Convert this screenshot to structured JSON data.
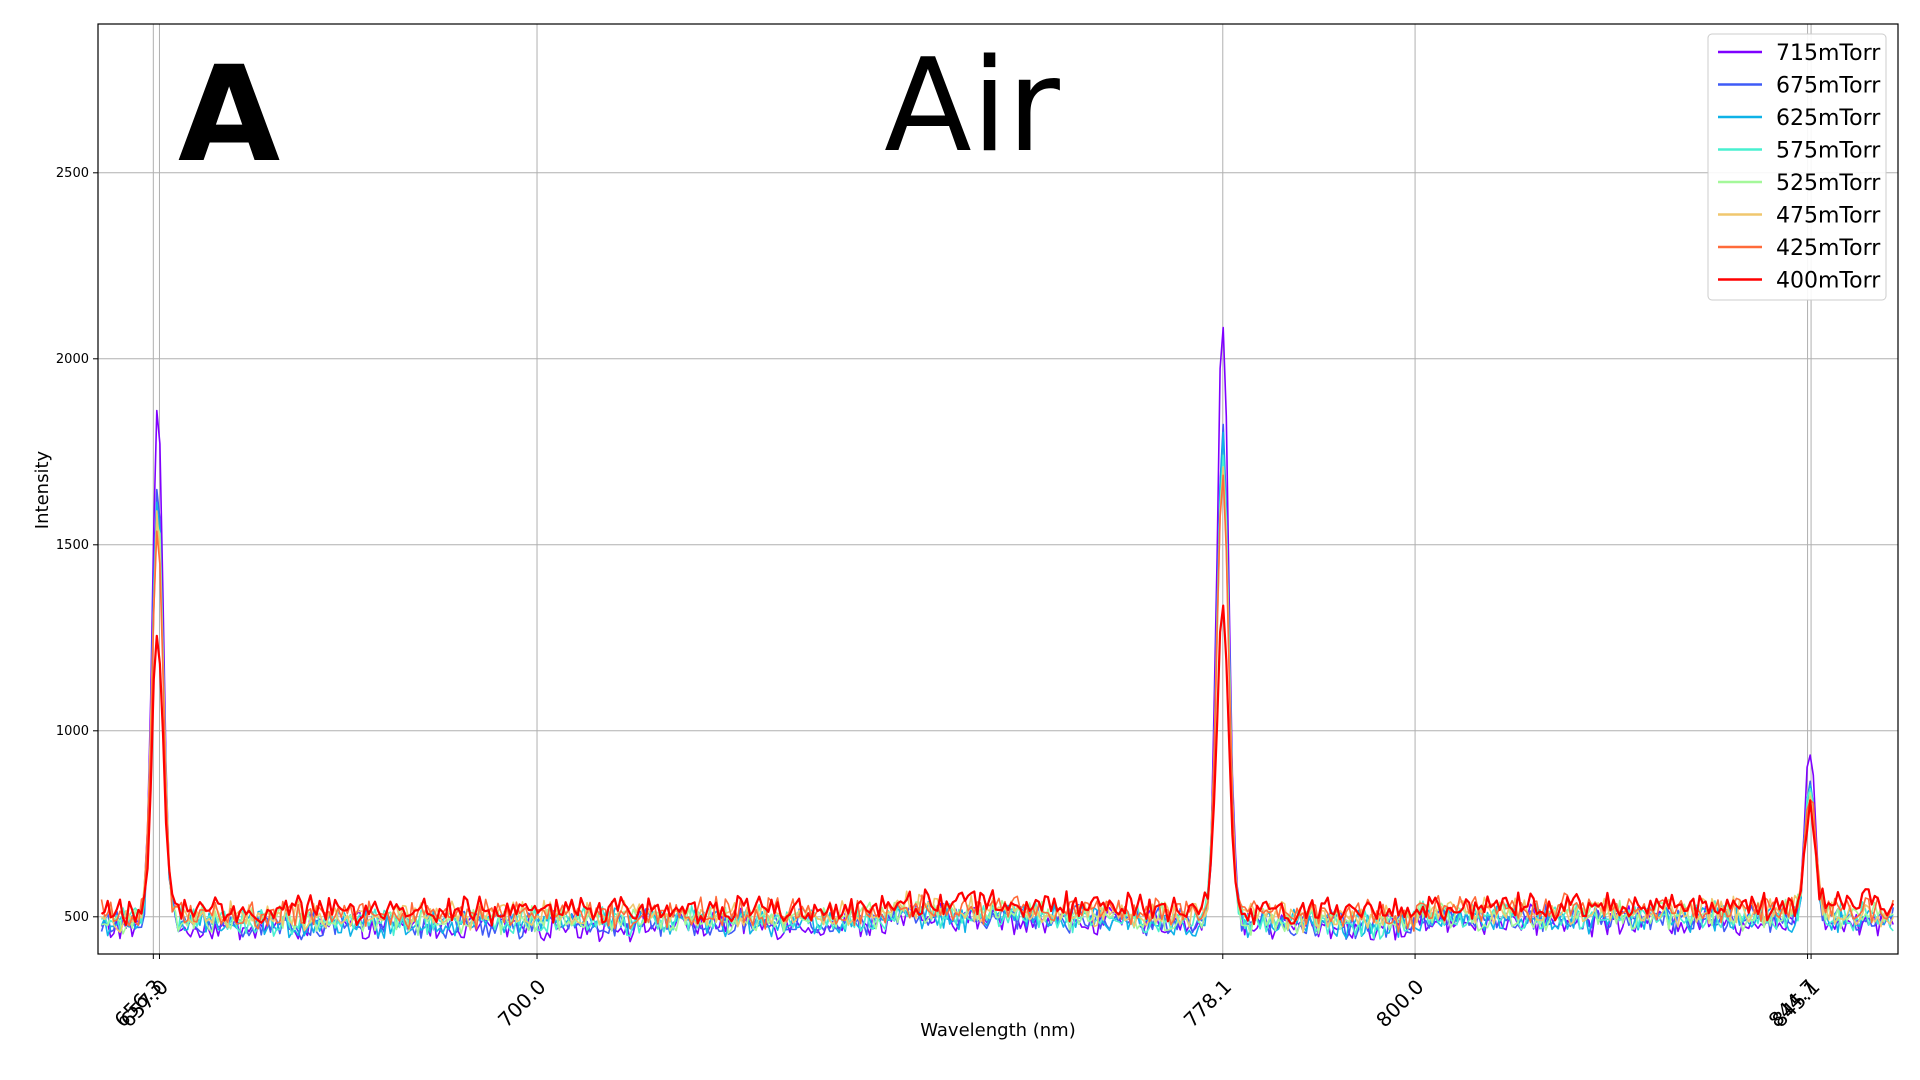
{
  "chart_data": {
    "type": "line",
    "panel_label": "A",
    "title": "Air",
    "xlabel": "Wavelength (nm)",
    "ylabel": "Intensity",
    "xlim": [
      650,
      855
    ],
    "ylim": [
      400,
      2900
    ],
    "grid": true,
    "legend_position": "top-right",
    "yticks": [
      500,
      1000,
      1500,
      2000,
      2500
    ],
    "xticks": [
      {
        "value": 656.3,
        "label": "656.3"
      },
      {
        "value": 657.0,
        "label": "657.0"
      },
      {
        "value": 700.0,
        "label": "700.0"
      },
      {
        "value": 778.1,
        "label": "778.1"
      },
      {
        "value": 800.0,
        "label": "800.0"
      },
      {
        "value": 844.7,
        "label": "844.7"
      },
      {
        "value": 845.1,
        "label": "845.1"
      }
    ],
    "peaks": [
      656.8,
      778.1,
      845.0
    ],
    "series": [
      {
        "name": "715mTorr",
        "color": "#7f00ff",
        "baseline": [
          470,
          500,
          490
        ],
        "peaks": [
          1870,
          2100,
          950
        ],
        "noise": 30
      },
      {
        "name": "675mTorr",
        "color": "#3f5bf7",
        "baseline": [
          475,
          505,
          495
        ],
        "peaks": [
          1660,
          1810,
          880
        ],
        "noise": 30
      },
      {
        "name": "625mTorr",
        "color": "#0fb2e7",
        "baseline": [
          480,
          505,
          495
        ],
        "peaks": [
          1630,
          1790,
          870
        ],
        "noise": 30
      },
      {
        "name": "575mTorr",
        "color": "#48f0d0",
        "baseline": [
          485,
          510,
          500
        ],
        "peaks": [
          1600,
          1760,
          860
        ],
        "noise": 30
      },
      {
        "name": "525mTorr",
        "color": "#a4f89a",
        "baseline": [
          490,
          515,
          505
        ],
        "peaks": [
          1580,
          1730,
          850
        ],
        "noise": 30
      },
      {
        "name": "475mTorr",
        "color": "#f0c76e",
        "baseline": [
          500,
          525,
          515
        ],
        "peaks": [
          1560,
          1700,
          840
        ],
        "noise": 30
      },
      {
        "name": "425mTorr",
        "color": "#ff6b3a",
        "baseline": [
          505,
          530,
          520
        ],
        "peaks": [
          1540,
          1680,
          830
        ],
        "noise": 30
      },
      {
        "name": "400mTorr",
        "color": "#ff0000",
        "baseline": [
          515,
          540,
          530
        ],
        "peaks": [
          1260,
          1360,
          800
        ],
        "noise": 30
      }
    ]
  }
}
